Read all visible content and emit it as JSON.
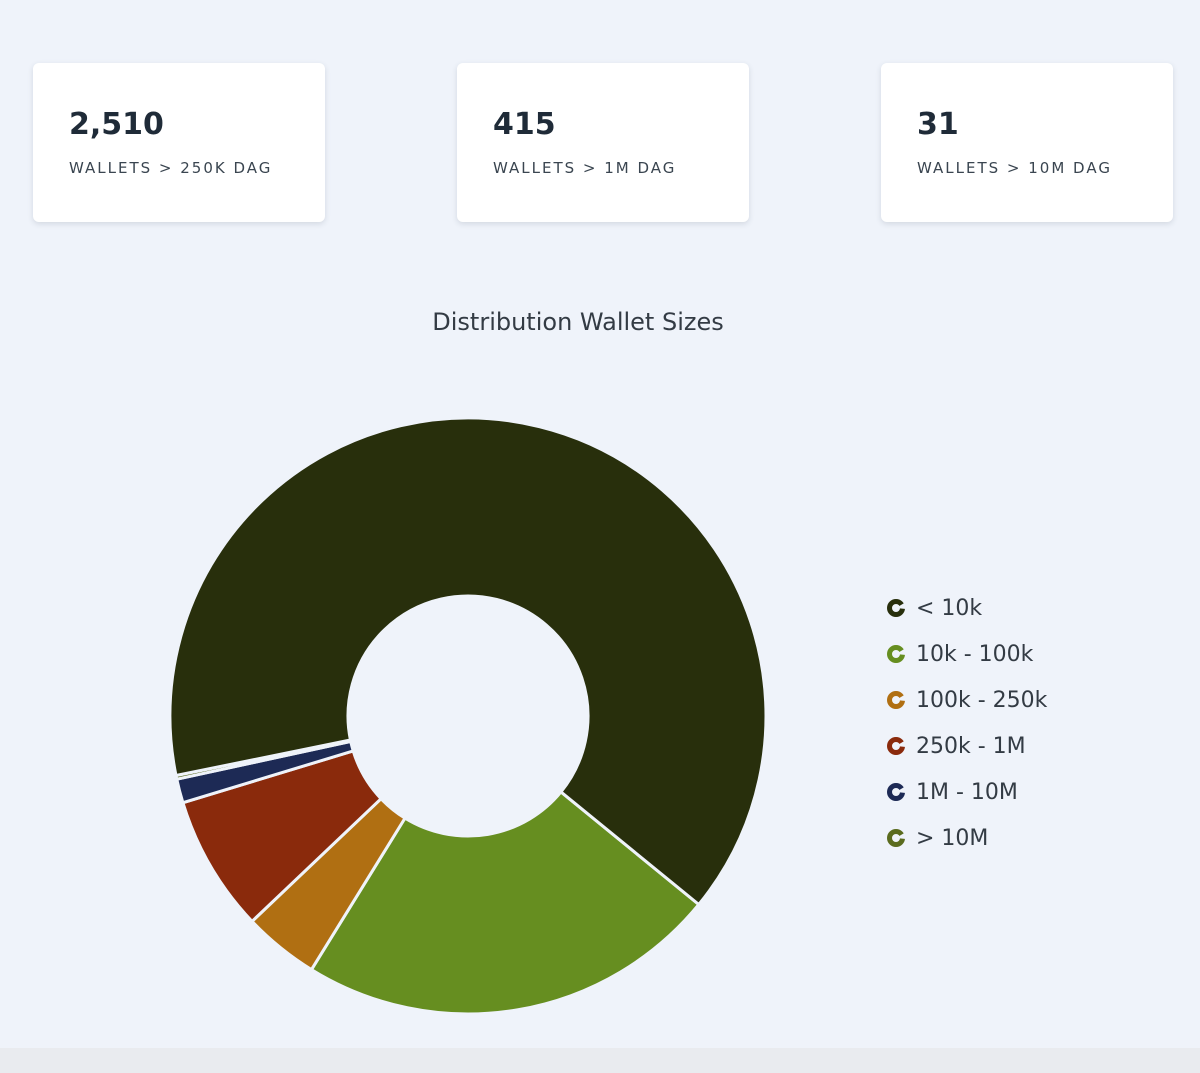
{
  "stats": [
    {
      "value": "2,510",
      "label": "WALLETS > 250K DAG"
    },
    {
      "value": "415",
      "label": "WALLETS > 1M DAG"
    },
    {
      "value": "31",
      "label": "WALLETS > 10M DAG"
    }
  ],
  "chart_data": {
    "type": "pie",
    "variant": "donut",
    "title": "Distribution Wallet Sizes",
    "categories": [
      "< 10k",
      "10k - 100k",
      "100k - 250k",
      "250k - 1M",
      "1M - 10M",
      "> 10M"
    ],
    "values": [
      64.1,
      22.9,
      4.1,
      7.4,
      1.3,
      0.2
    ],
    "colors": [
      "#282f0c",
      "#668e20",
      "#b06f12",
      "#8a2a0c",
      "#1d2a55",
      "#5a6b1e"
    ],
    "legend_position": "right"
  }
}
